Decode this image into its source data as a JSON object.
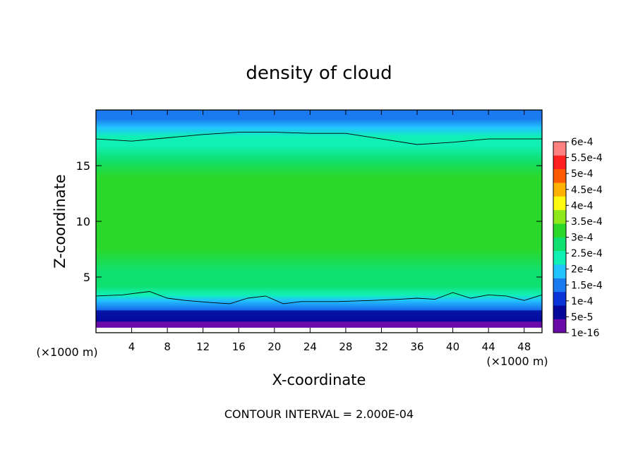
{
  "chart_data": {
    "type": "heatmap",
    "title": "density of cloud",
    "xlabel": "X-coordinate",
    "ylabel": "Z-coordinate",
    "x_unit_left": "(×1000 m)",
    "x_unit_right": "(×1000 m)",
    "xlim": [
      0,
      50
    ],
    "ylim": [
      0,
      20
    ],
    "x_ticks": [
      4,
      8,
      12,
      16,
      20,
      24,
      28,
      32,
      36,
      40,
      44,
      48
    ],
    "x_tick_labels": [
      "4",
      "8",
      "12",
      "16",
      "20",
      "24",
      "28",
      "32",
      "36",
      "40",
      "44",
      "48"
    ],
    "y_ticks": [
      5,
      10,
      15
    ],
    "y_tick_labels": [
      "5",
      "10",
      "15"
    ],
    "footer": "CONTOUR INTERVAL = 2.000E-04",
    "contour_interval": 0.0002,
    "colorbar": {
      "levels": [
        1e-16,
        5e-05,
        0.0001,
        0.00015,
        0.0002,
        0.00025,
        0.0003,
        0.00035,
        0.0004,
        0.00045,
        0.0005,
        0.00055,
        0.0006
      ],
      "labels": [
        "1e-16",
        "5e-5",
        "1e-4",
        "1.5e-4",
        "2e-4",
        "2.5e-4",
        "3e-4",
        "3.5e-4",
        "4e-4",
        "4.5e-4",
        "5e-4",
        "5.5e-4",
        "6e-4"
      ],
      "colors": [
        "#6a0aa8",
        "#05089a",
        "#0a33d8",
        "#1a7af0",
        "#22c4ff",
        "#10f0b4",
        "#10e070",
        "#2ad82a",
        "#8ee81a",
        "#fffa10",
        "#ffb000",
        "#ff5a00",
        "#ff2020",
        "#ff8080"
      ]
    },
    "profile": {
      "z": [
        0.3,
        0.9,
        1.5,
        2.2,
        2.9,
        3.4,
        4.2,
        5.5,
        7.5,
        9.5,
        12.0,
        14.0,
        15.5,
        16.8,
        17.6,
        18.4,
        19.2,
        20.0
      ],
      "density": [
        0,
        2e-05,
        6e-05,
        0.00012,
        0.00016,
        0.0002,
        0.00025,
        0.00029,
        0.00032,
        0.00033,
        0.00032,
        0.0003,
        0.00027,
        0.000235,
        0.0002,
        0.00017,
        0.00014,
        0.00012
      ]
    },
    "contour_lines": [
      {
        "level": 0.0002,
        "x": [
          0,
          3,
          6,
          8,
          10,
          13,
          15,
          17,
          19,
          21,
          23,
          27,
          31,
          34,
          36,
          38,
          40,
          42,
          44,
          46,
          48,
          50
        ],
        "z": [
          3.3,
          3.4,
          3.7,
          3.1,
          2.9,
          2.7,
          2.6,
          3.1,
          3.3,
          2.6,
          2.8,
          2.8,
          2.9,
          3.0,
          3.1,
          3.0,
          3.6,
          3.1,
          3.4,
          3.3,
          2.9,
          3.4
        ]
      },
      {
        "level": 0.0002,
        "x": [
          0,
          4,
          8,
          12,
          16,
          20,
          24,
          28,
          32,
          36,
          40,
          44,
          48,
          50
        ],
        "z": [
          17.4,
          17.2,
          17.5,
          17.8,
          18.0,
          18.0,
          17.9,
          17.9,
          17.4,
          16.9,
          17.1,
          17.4,
          17.4,
          17.4
        ]
      }
    ]
  }
}
